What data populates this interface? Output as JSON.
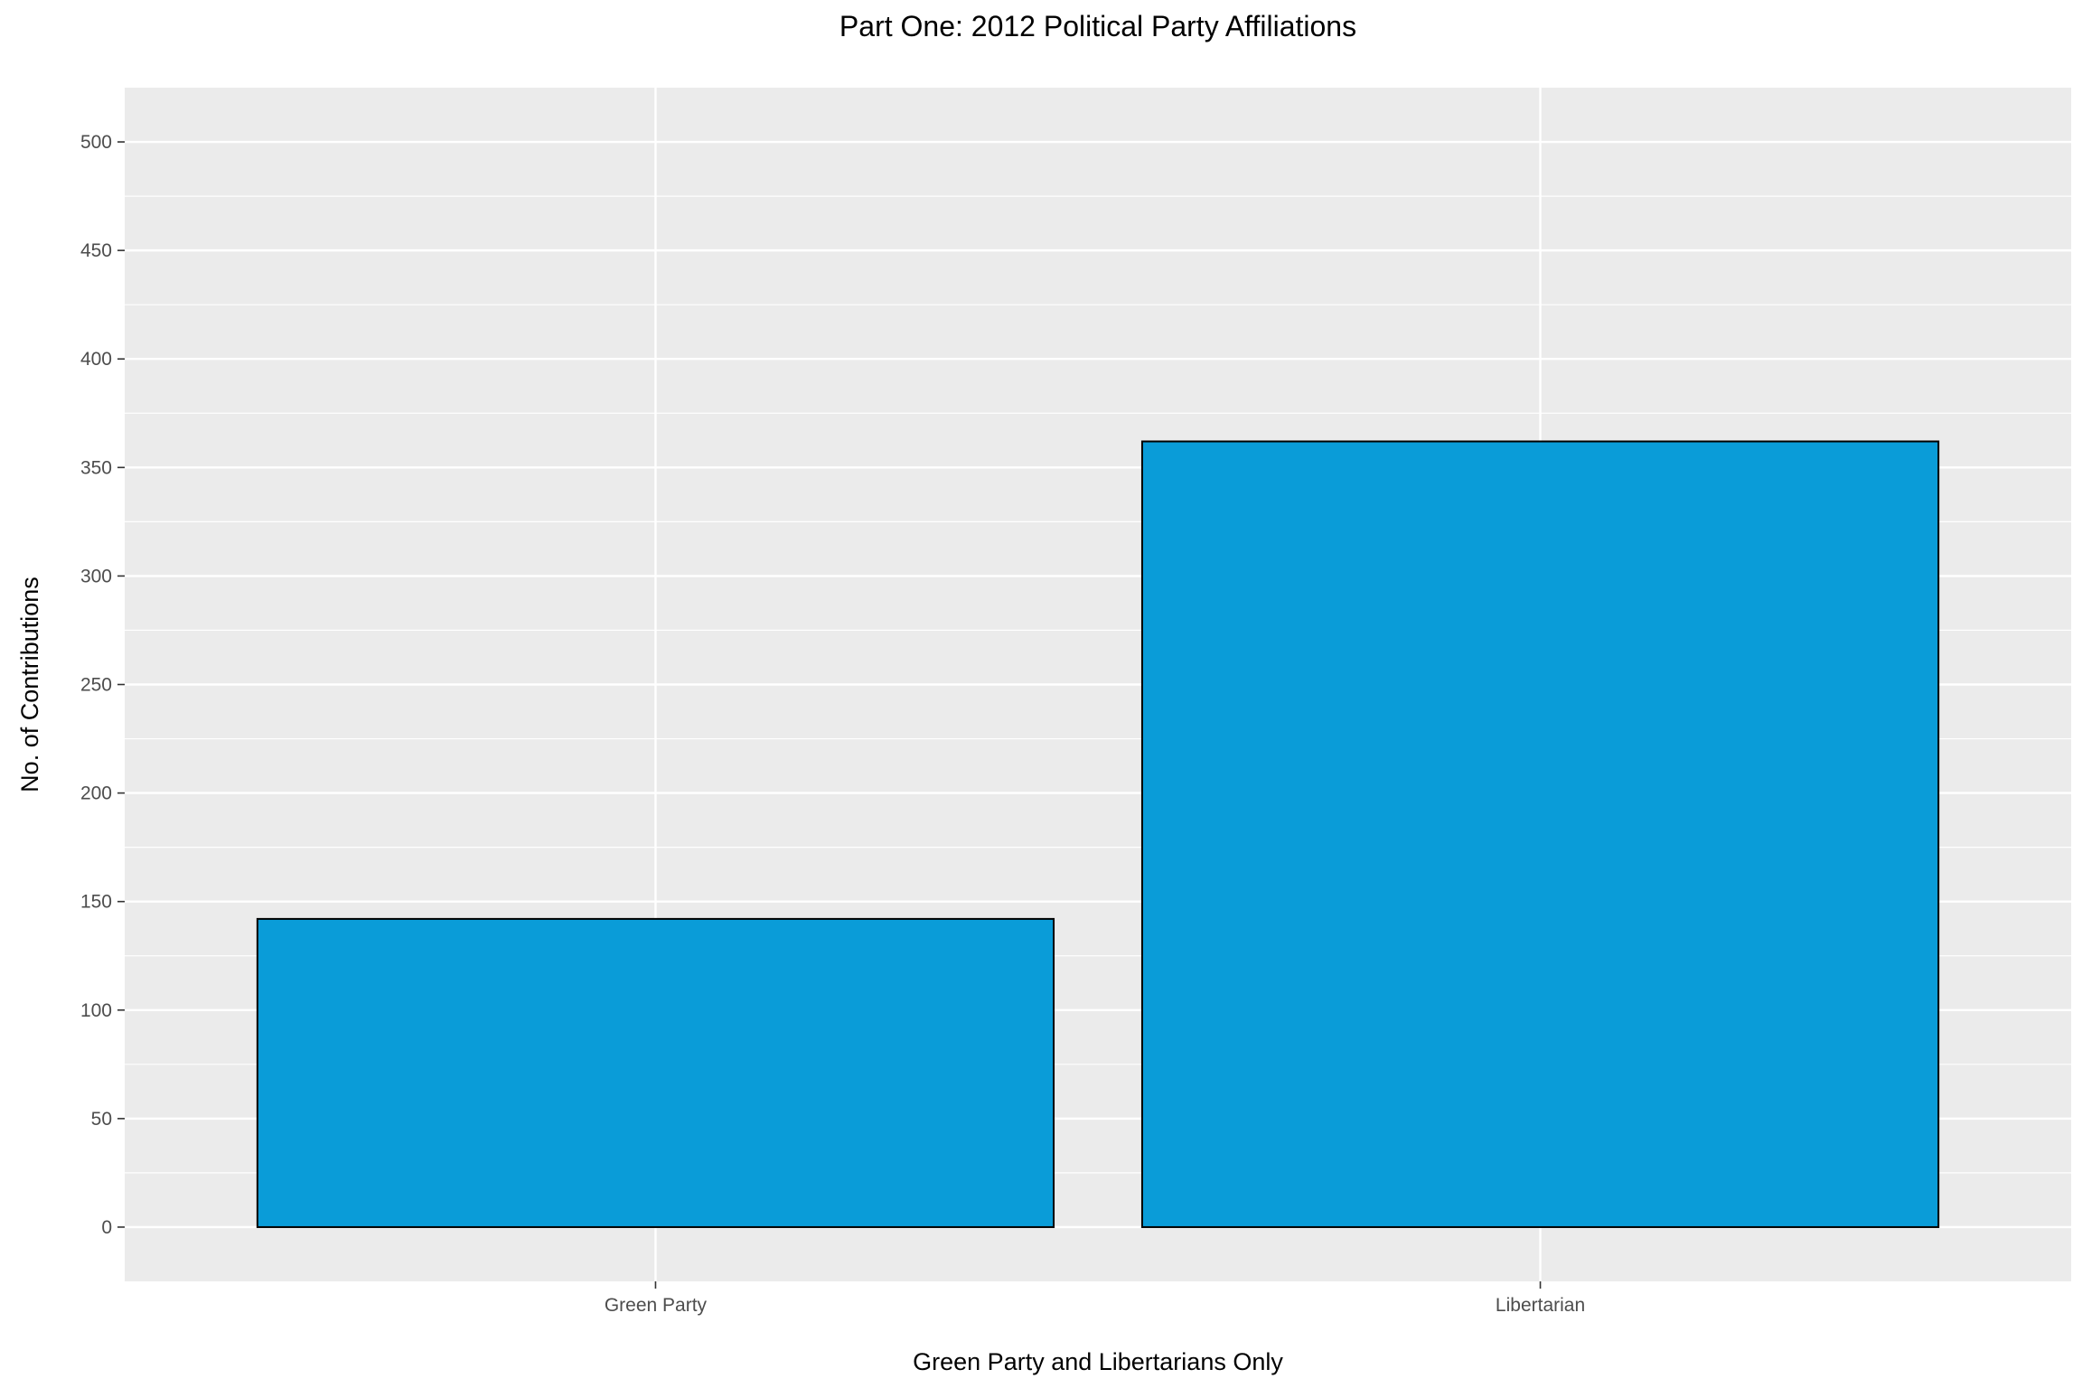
{
  "chart_data": {
    "type": "bar",
    "title": "Part One: 2012 Political Party Affiliations",
    "xlabel": "Green Party and Libertarians Only",
    "ylabel": "No. of Contributions",
    "categories": [
      "Green Party",
      "Libertarian"
    ],
    "values": [
      142,
      362
    ],
    "ylim": [
      -25,
      525
    ],
    "yticks": [
      0,
      50,
      100,
      150,
      200,
      250,
      300,
      350,
      400,
      450,
      500
    ],
    "grid": true,
    "legend": "none",
    "colors": {
      "bar_fill": "#0A9CD8",
      "bar_stroke": "#000000",
      "panel_background": "#EBEBEB",
      "grid_line": "#FFFFFF",
      "tick_label": "#4D4D4D"
    }
  }
}
